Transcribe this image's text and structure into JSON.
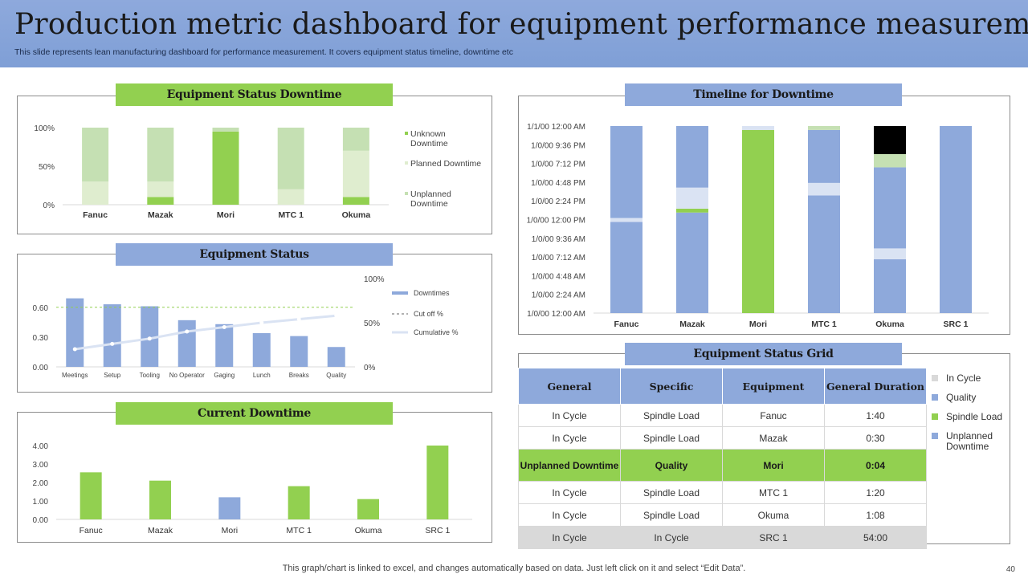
{
  "header": {
    "title": "Production metric dashboard for equipment performance measurement",
    "subtitle": "This slide represents lean manufacturing dashboard for performance measurement. It covers equipment status timeline, downtime etc"
  },
  "footer": {
    "note": "This graph/chart is linked to excel, and changes automatically based on data. Just left click on it and select “Edit Data”.",
    "page": "40"
  },
  "colors": {
    "green": "#92d050",
    "light_green": "#c5e0b3",
    "blue": "#8ea9db",
    "pale_blue": "#dae3f3",
    "black": "#000000"
  },
  "panels": {
    "status_downtime_title": "Equipment Status Downtime",
    "equipment_status_title": "Equipment Status",
    "current_downtime_title": "Current Downtime",
    "timeline_title": "Timeline for Downtime",
    "grid_title": "Equipment Status Grid"
  },
  "chart_data": [
    {
      "id": "status_downtime",
      "type": "bar",
      "stacked": true,
      "title": "Equipment Status Downtime",
      "categories": [
        "Fanuc",
        "Mazak",
        "Mori",
        "MTC 1",
        "Okuma"
      ],
      "y_ticks": [
        "0%",
        "50%",
        "100%"
      ],
      "ylim": [
        0,
        100
      ],
      "series": [
        {
          "name": "Unknown Downtime",
          "color": "#92d050",
          "values": [
            0,
            10,
            95,
            0,
            10
          ]
        },
        {
          "name": "Planned Downtime",
          "color": "#dfedcf",
          "values": [
            30,
            20,
            0,
            20,
            60
          ]
        },
        {
          "name": "Unplanned Downtime",
          "color": "#c5e0b3",
          "values": [
            70,
            70,
            5,
            80,
            30
          ]
        }
      ],
      "legend": [
        "Unknown Downtime",
        "Planned Downtime",
        "Unplanned Downtime"
      ]
    },
    {
      "id": "equipment_status",
      "type": "bar",
      "title": "Equipment Status",
      "categories": [
        "Meetings",
        "Setup",
        "Tooling",
        "No Operator",
        "Gaging",
        "Lunch",
        "Breaks",
        "Quality"
      ],
      "y_ticks": [
        "0.00",
        "0.30",
        "0.60"
      ],
      "ylim": [
        0,
        0.8
      ],
      "y2_ticks": [
        "0%",
        "50%",
        "100%"
      ],
      "y2lim": [
        0,
        100
      ],
      "series": [
        {
          "name": "Downtimes",
          "color": "#8ea9db",
          "values": [
            0.69,
            0.63,
            0.61,
            0.47,
            0.43,
            0.34,
            0.31,
            0.2
          ]
        },
        {
          "name": "Cumulative %",
          "color": "#dae3f3",
          "values": [
            20,
            26,
            32,
            40,
            45,
            50,
            54,
            58
          ]
        }
      ],
      "cutoff_value": 0.6,
      "legend": [
        "Downtimes",
        "Cut off %",
        "Cumulative %"
      ]
    },
    {
      "id": "current_downtime",
      "type": "bar",
      "title": "Current Downtime",
      "categories": [
        "Fanuc",
        "Mazak",
        "Mori",
        "MTC 1",
        "Okuma",
        "SRC 1"
      ],
      "values": [
        2.55,
        2.1,
        1.2,
        1.8,
        1.1,
        4.0
      ],
      "bar_colors": [
        "#92d050",
        "#92d050",
        "#8ea9db",
        "#92d050",
        "#92d050",
        "#92d050"
      ],
      "y_ticks": [
        "0.00",
        "1.00",
        "2.00",
        "3.00",
        "4.00"
      ],
      "ylim": [
        0,
        4
      ]
    },
    {
      "id": "timeline",
      "type": "bar",
      "stacked": true,
      "title": "Timeline for Downtime",
      "categories": [
        "Fanuc",
        "Mazak",
        "Mori",
        "MTC 1",
        "Okuma",
        "SRC 1"
      ],
      "y_ticks": [
        "1/0/00 12:00 AM",
        "1/0/00 2:24 AM",
        "1/0/00 4:48 AM",
        "1/0/00 7:12 AM",
        "1/0/00 9:36 AM",
        "1/0/00 12:00 PM",
        "1/0/00 2:24 PM",
        "1/0/00 4:48 PM",
        "1/0/00 7:12 PM",
        "1/0/00 9:36 PM",
        "1/1/00 12:00 AM"
      ],
      "ylim": [
        0,
        24
      ],
      "segment_legend": [
        "In Cycle",
        "Quality",
        "Spindle Load",
        "Unplanned Downtime"
      ],
      "stacks": [
        [
          {
            "color": "#8ea9db",
            "value": 11.7
          },
          {
            "color": "#dae3f3",
            "value": 0.5
          },
          {
            "color": "#8ea9db",
            "value": 11.8
          }
        ],
        [
          {
            "color": "#8ea9db",
            "value": 12.9
          },
          {
            "color": "#92d050",
            "value": 0.5
          },
          {
            "color": "#dae3f3",
            "value": 2.7
          },
          {
            "color": "#8ea9db",
            "value": 7.9
          }
        ],
        [
          {
            "color": "#92d050",
            "value": 23.5
          },
          {
            "color": "#dae3f3",
            "value": 0.5
          }
        ],
        [
          {
            "color": "#8ea9db",
            "value": 15.1
          },
          {
            "color": "#dae3f3",
            "value": 1.6
          },
          {
            "color": "#8ea9db",
            "value": 6.8
          },
          {
            "color": "#c5e0b3",
            "value": 0.5
          }
        ],
        [
          {
            "color": "#8ea9db",
            "value": 6.9
          },
          {
            "color": "#dae3f3",
            "value": 1.4
          },
          {
            "color": "#8ea9db",
            "value": 10.4
          },
          {
            "color": "#c5e0b3",
            "value": 1.7
          },
          {
            "color": "#000000",
            "value": 3.6
          }
        ],
        [
          {
            "color": "#8ea9db",
            "value": 24
          }
        ]
      ]
    }
  ],
  "grid": {
    "headers": [
      "General",
      "Specific",
      "Equipment",
      "General Duration"
    ],
    "rows": [
      [
        "In Cycle",
        "Spindle Load",
        "Fanuc",
        "1:40"
      ],
      [
        "In Cycle",
        "Spindle Load",
        "Mazak",
        "0:30"
      ],
      [
        "Unplanned Downtime",
        "Quality",
        "Mori",
        "0:04"
      ],
      [
        "In Cycle",
        "Spindle Load",
        "MTC 1",
        "1:20"
      ],
      [
        "In Cycle",
        "Spindle Load",
        "Okuma",
        "1:08"
      ],
      [
        "In Cycle",
        "In Cycle",
        "SRC 1",
        "54:00"
      ]
    ],
    "legend": [
      {
        "label": "In Cycle",
        "color": "#d9d9d9"
      },
      {
        "label": "Quality",
        "color": "#8ea9db"
      },
      {
        "label": "Spindle Load",
        "color": "#92d050"
      },
      {
        "label": "Unplanned Downtime",
        "color": "#8ea9db"
      }
    ]
  }
}
